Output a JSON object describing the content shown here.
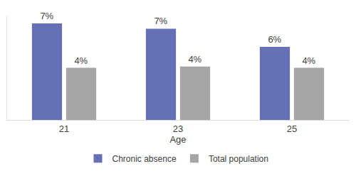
{
  "chart_data": {
    "type": "bar",
    "x_label": "Age",
    "categories": [
      "21",
      "23",
      "25"
    ],
    "series": [
      {
        "name": "Chronic absence",
        "color": "#6570b5",
        "values": [
          7.4,
          7.0,
          5.6
        ],
        "value_labels": [
          "7%",
          "7%",
          "6%"
        ]
      },
      {
        "name": "Total population",
        "color": "#a5a5a5",
        "values": [
          4.0,
          4.1,
          4.0
        ],
        "value_labels": [
          "4%",
          "4%",
          "4%"
        ]
      }
    ],
    "ylim": [
      0,
      8
    ],
    "yticks": [],
    "grid": false,
    "legend": "bottom",
    "data_labels": true,
    "tick_labels": "x"
  }
}
